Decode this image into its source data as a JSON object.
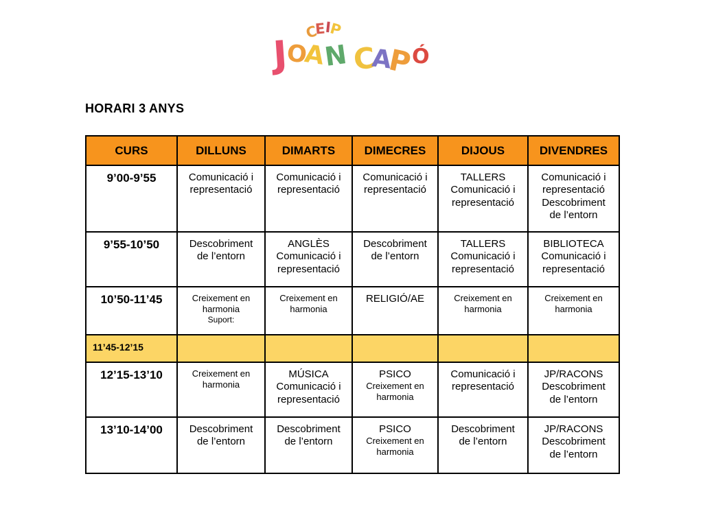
{
  "page": {
    "title": "HORARI 3 ANYS"
  },
  "colors": {
    "header_bg": "#F7941D",
    "highlight_bg": "#FCD565",
    "border": "#000000"
  },
  "logo": {
    "name": "CEIP Joan Capó",
    "top": [
      {
        "ch": "C",
        "color": "#E89B3C"
      },
      {
        "ch": "E",
        "color": "#D85B50"
      },
      {
        "ch": "I",
        "color": "#C94A53"
      },
      {
        "ch": "P",
        "color": "#F2C33C"
      }
    ],
    "main": [
      {
        "ch": "J",
        "color": "#E8506E"
      },
      {
        "ch": "O",
        "color": "#EE9D3B"
      },
      {
        "ch": "A",
        "color": "#F2C33C"
      },
      {
        "ch": "N",
        "color": "#5FA96B"
      },
      {
        "ch": " ",
        "color": "#000000"
      },
      {
        "ch": "C",
        "color": "#F0C23F"
      },
      {
        "ch": "A",
        "color": "#7C73C4"
      },
      {
        "ch": "P",
        "color": "#EE9D3B"
      },
      {
        "ch": "Ó",
        "color": "#DC4A41"
      }
    ]
  },
  "table": {
    "headers": [
      "CURS",
      "DILLUNS",
      "DIMARTS",
      "DIMECRES",
      "DIJOUS",
      "DIVENDRES"
    ],
    "rows": [
      {
        "time": "9’00-9’55",
        "cells": [
          [
            {
              "t": "Comunicació i"
            },
            {
              "t": "representació"
            }
          ],
          [
            {
              "t": "Comunicació i"
            },
            {
              "t": "representació"
            }
          ],
          [
            {
              "t": "Comunicació i"
            },
            {
              "t": "representació"
            }
          ],
          [
            {
              "t": "TALLERS"
            },
            {
              "t": "Comunicació i"
            },
            {
              "t": "representació"
            }
          ],
          [
            {
              "t": "Comunicació i"
            },
            {
              "t": "representació"
            },
            {
              "t": "Descobriment"
            },
            {
              "t": "de l’entorn"
            }
          ]
        ]
      },
      {
        "time": "9’55-10’50",
        "cells": [
          [
            {
              "t": "Descobriment"
            },
            {
              "t": "de l’entorn"
            }
          ],
          [
            {
              "t": "ANGLÈS"
            },
            {
              "t": "Comunicació i"
            },
            {
              "t": "representació"
            }
          ],
          [
            {
              "t": "Descobriment"
            },
            {
              "t": "de l’entorn"
            }
          ],
          [
            {
              "t": "TALLERS"
            },
            {
              "t": "Comunicació i"
            },
            {
              "t": "representació"
            }
          ],
          [
            {
              "t": "BIBLIOTECA"
            },
            {
              "t": "Comunicació i"
            },
            {
              "t": "representació"
            }
          ]
        ]
      },
      {
        "time": "10’50-11’45",
        "cells": [
          [
            {
              "t": "Creixement en",
              "size": "sm"
            },
            {
              "t": "harmonia",
              "size": "sm"
            },
            {
              "t": "Suport:",
              "size": "xs"
            }
          ],
          [
            {
              "t": "Creixement en",
              "size": "sm"
            },
            {
              "t": "harmonia",
              "size": "sm"
            }
          ],
          [
            {
              "t": "RELIGIÓ/AE"
            }
          ],
          [
            {
              "t": "Creixement en",
              "size": "sm"
            },
            {
              "t": "harmonia",
              "size": "sm"
            }
          ],
          [
            {
              "t": "Creixement en",
              "size": "sm"
            },
            {
              "t": "harmonia",
              "size": "sm"
            }
          ]
        ]
      },
      {
        "time": "11’45-12’15",
        "highlight": true,
        "cells": [
          [],
          [],
          [],
          [],
          []
        ]
      },
      {
        "time": "12’15-13’10",
        "cells": [
          [
            {
              "t": "Creixement en",
              "size": "sm"
            },
            {
              "t": "harmonia",
              "size": "sm"
            }
          ],
          [
            {
              "t": "MÚSICA"
            },
            {
              "t": "Comunicació i"
            },
            {
              "t": "representació"
            }
          ],
          [
            {
              "t": "PSICO"
            },
            {
              "t": "Creixement en",
              "size": "sm"
            },
            {
              "t": "harmonia",
              "size": "sm"
            }
          ],
          [
            {
              "t": "Comunicació i"
            },
            {
              "t": "representació"
            }
          ],
          [
            {
              "t": "JP/RACONS"
            },
            {
              "t": "Descobriment"
            },
            {
              "t": "de l’entorn"
            }
          ]
        ]
      },
      {
        "time": "13’10-14’00",
        "cells": [
          [
            {
              "t": "Descobriment"
            },
            {
              "t": "de l’entorn"
            }
          ],
          [
            {
              "t": "Descobriment"
            },
            {
              "t": "de l’entorn"
            }
          ],
          [
            {
              "t": "PSICO"
            },
            {
              "t": "Creixement en",
              "size": "sm"
            },
            {
              "t": "harmonia",
              "size": "sm"
            }
          ],
          [
            {
              "t": "Descobriment"
            },
            {
              "t": "de l’entorn"
            }
          ],
          [
            {
              "t": "JP/RACONS"
            },
            {
              "t": "Descobriment"
            },
            {
              "t": "de l’entorn"
            }
          ]
        ]
      }
    ]
  }
}
